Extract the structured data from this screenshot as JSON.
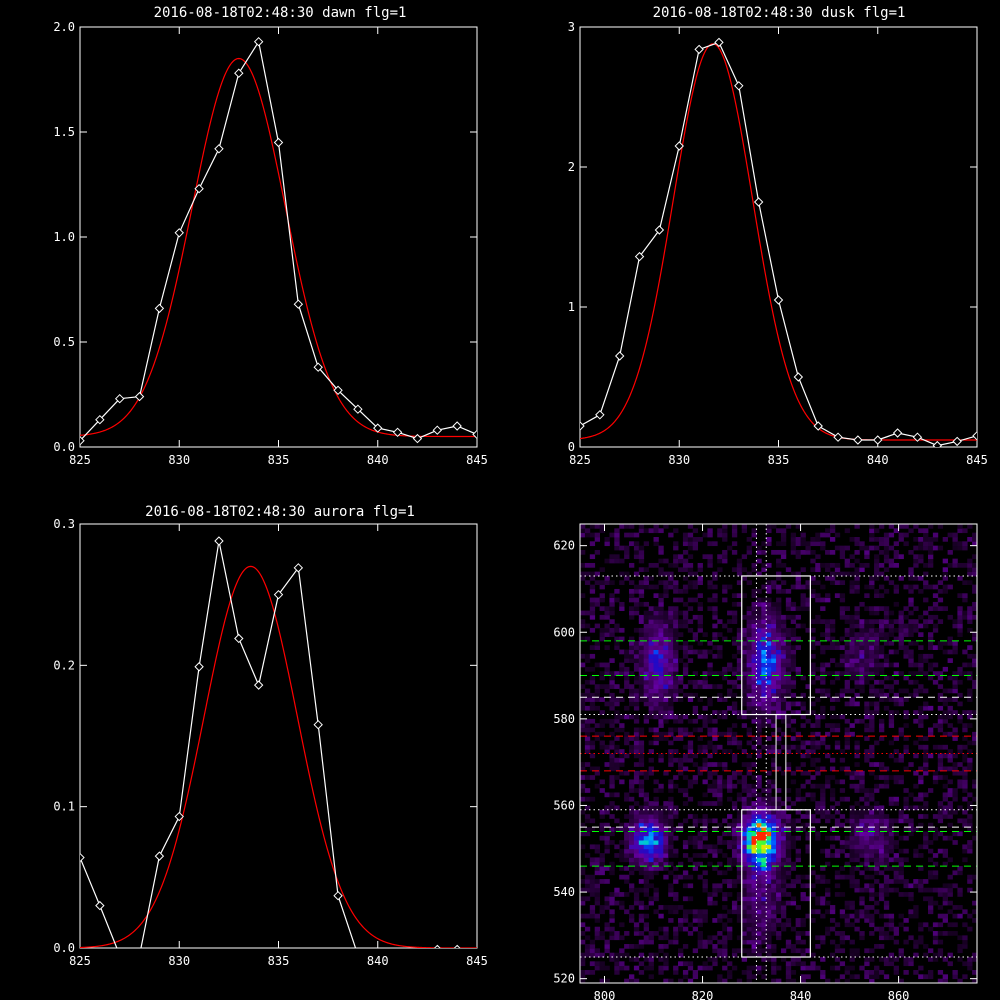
{
  "chart_data": [
    {
      "type": "line",
      "title": "2016-08-18T02:48:30 dawn flg=1",
      "xlim": [
        825,
        845
      ],
      "ylim": [
        0,
        2.0
      ],
      "xticks": [
        825,
        830,
        835,
        840,
        845
      ],
      "xtick_labels": [
        "825",
        "830",
        "835",
        "840",
        "845"
      ],
      "yticks": [
        0,
        0.5,
        1.0,
        1.5,
        2.0
      ],
      "ytick_labels": [
        "0.0",
        "0.5",
        "1.0",
        "1.5",
        "2.0"
      ],
      "series": [
        {
          "kind": "measured",
          "color": "#ffffff",
          "marker": "diamond",
          "x": [
            825,
            826,
            827,
            828,
            829,
            830,
            831,
            832,
            833,
            834,
            835,
            836,
            837,
            838,
            839,
            840,
            841,
            842,
            843,
            844,
            845
          ],
          "y": [
            0.03,
            0.13,
            0.23,
            0.24,
            0.66,
            1.02,
            1.23,
            1.42,
            1.78,
            1.93,
            1.45,
            0.68,
            0.38,
            0.27,
            0.18,
            0.09,
            0.07,
            0.04,
            0.08,
            0.1,
            0.06
          ]
        },
        {
          "kind": "fit",
          "color": "#ff0000",
          "gaussian": {
            "amp": 1.8,
            "center": 833.0,
            "sigma": 2.35,
            "offset": 0.05
          }
        }
      ]
    },
    {
      "type": "line",
      "title": "2016-08-18T02:48:30 dusk flg=1",
      "xlim": [
        825,
        845
      ],
      "ylim": [
        0,
        3
      ],
      "xticks": [
        825,
        830,
        835,
        840,
        845
      ],
      "xtick_labels": [
        "825",
        "830",
        "835",
        "840",
        "845"
      ],
      "yticks": [
        0,
        1,
        2,
        3
      ],
      "ytick_labels": [
        "0",
        "1",
        "2",
        "3"
      ],
      "series": [
        {
          "kind": "measured",
          "color": "#ffffff",
          "marker": "diamond",
          "x": [
            825,
            826,
            827,
            828,
            829,
            830,
            831,
            832,
            833,
            834,
            835,
            836,
            837,
            838,
            839,
            840,
            841,
            842,
            843,
            844,
            845
          ],
          "y": [
            0.15,
            0.23,
            0.65,
            1.36,
            1.55,
            2.15,
            2.84,
            2.89,
            2.58,
            1.75,
            1.05,
            0.5,
            0.15,
            0.07,
            0.05,
            0.05,
            0.1,
            0.07,
            0.01,
            0.04,
            0.08
          ]
        },
        {
          "kind": "fit",
          "color": "#ff0000",
          "gaussian": {
            "amp": 2.83,
            "center": 831.7,
            "sigma": 2.0,
            "offset": 0.05
          }
        }
      ]
    },
    {
      "type": "line",
      "title": "2016-08-18T02:48:30 aurora flg=1",
      "xlim": [
        825,
        845
      ],
      "ylim": [
        0,
        0.3
      ],
      "xticks": [
        825,
        830,
        835,
        840,
        845
      ],
      "xtick_labels": [
        "825",
        "830",
        "835",
        "840",
        "845"
      ],
      "yticks": [
        0,
        0.1,
        0.2,
        0.3
      ],
      "ytick_labels": [
        "0.0",
        "0.1",
        "0.2",
        "0.3"
      ],
      "series": [
        {
          "kind": "measured",
          "color": "#ffffff",
          "marker": "diamond",
          "x": [
            825,
            826,
            827,
            828,
            829,
            830,
            831,
            832,
            833,
            834,
            835,
            836,
            837,
            838,
            839,
            840,
            841,
            842,
            843,
            844,
            845
          ],
          "y": [
            0.064,
            0.03,
            -0.005,
            -0.005,
            0.065,
            0.093,
            0.199,
            0.288,
            0.219,
            0.186,
            0.25,
            0.269,
            0.158,
            0.037,
            -0.005,
            -0.01,
            -0.006,
            -0.005,
            -0.001,
            -0.001,
            -0.004
          ]
        },
        {
          "kind": "fit",
          "color": "#ff0000",
          "gaussian": {
            "amp": 0.27,
            "center": 833.6,
            "sigma": 2.35,
            "offset": 0.0
          }
        }
      ]
    },
    {
      "type": "heatmap",
      "xlim": [
        795,
        876
      ],
      "ylim": [
        519,
        625
      ],
      "xticks": [
        800,
        820,
        840,
        860
      ],
      "xtick_labels": [
        "800",
        "820",
        "840",
        "860"
      ],
      "yticks": [
        520,
        540,
        560,
        580,
        600,
        620
      ],
      "ytick_labels": [
        "520",
        "540",
        "560",
        "580",
        "600",
        "620"
      ],
      "blobs": [
        {
          "cx": 811,
          "cy": 593,
          "sx": 2.0,
          "sy": 6.0,
          "amp": 0.32
        },
        {
          "cx": 809,
          "cy": 552,
          "sx": 2.2,
          "sy": 3.5,
          "amp": 0.52
        },
        {
          "cx": 833,
          "cy": 593,
          "sx": 2.2,
          "sy": 6.5,
          "amp": 0.45
        },
        {
          "cx": 832,
          "cy": 552,
          "sx": 2.3,
          "sy": 3.8,
          "amp": 1.0
        },
        {
          "cx": 854,
          "cy": 553,
          "sx": 2.6,
          "sy": 3.6,
          "amp": 0.16
        },
        {
          "cx": 853,
          "cy": 595,
          "sx": 2.6,
          "sy": 4.5,
          "amp": 0.1
        },
        {
          "cx": 832,
          "cy": 540,
          "sx": 2.5,
          "sy": 8.0,
          "amp": 0.14
        }
      ],
      "boxes": [
        {
          "x0": 828,
          "x1": 842,
          "y0": 581,
          "y1": 613
        },
        {
          "x0": 828,
          "x1": 842,
          "y0": 525,
          "y1": 559
        }
      ],
      "connector_x": [
        835,
        837
      ],
      "vlines_dotted": [
        831,
        833
      ],
      "hlines": [
        {
          "y": 613,
          "color": "#ffffff",
          "style": "dotted"
        },
        {
          "y": 598,
          "color": "#00ff00",
          "style": "dashed"
        },
        {
          "y": 590,
          "color": "#00ff00",
          "style": "dashed"
        },
        {
          "y": 585,
          "color": "#ffffff",
          "style": "dashed"
        },
        {
          "y": 581,
          "color": "#ffffff",
          "style": "dotted"
        },
        {
          "y": 576,
          "color": "#ff0000",
          "style": "dashed"
        },
        {
          "y": 572,
          "color": "#ff0000",
          "style": "dotted"
        },
        {
          "y": 568,
          "color": "#ff0000",
          "style": "dashed"
        },
        {
          "y": 559,
          "color": "#ffffff",
          "style": "dotted"
        },
        {
          "y": 555,
          "color": "#ffffff",
          "style": "dashed"
        },
        {
          "y": 554,
          "color": "#00ff00",
          "style": "dashed"
        },
        {
          "y": 546,
          "color": "#00ff00",
          "style": "dashed"
        },
        {
          "y": 525,
          "color": "#ffffff",
          "style": "dotted"
        }
      ]
    }
  ]
}
